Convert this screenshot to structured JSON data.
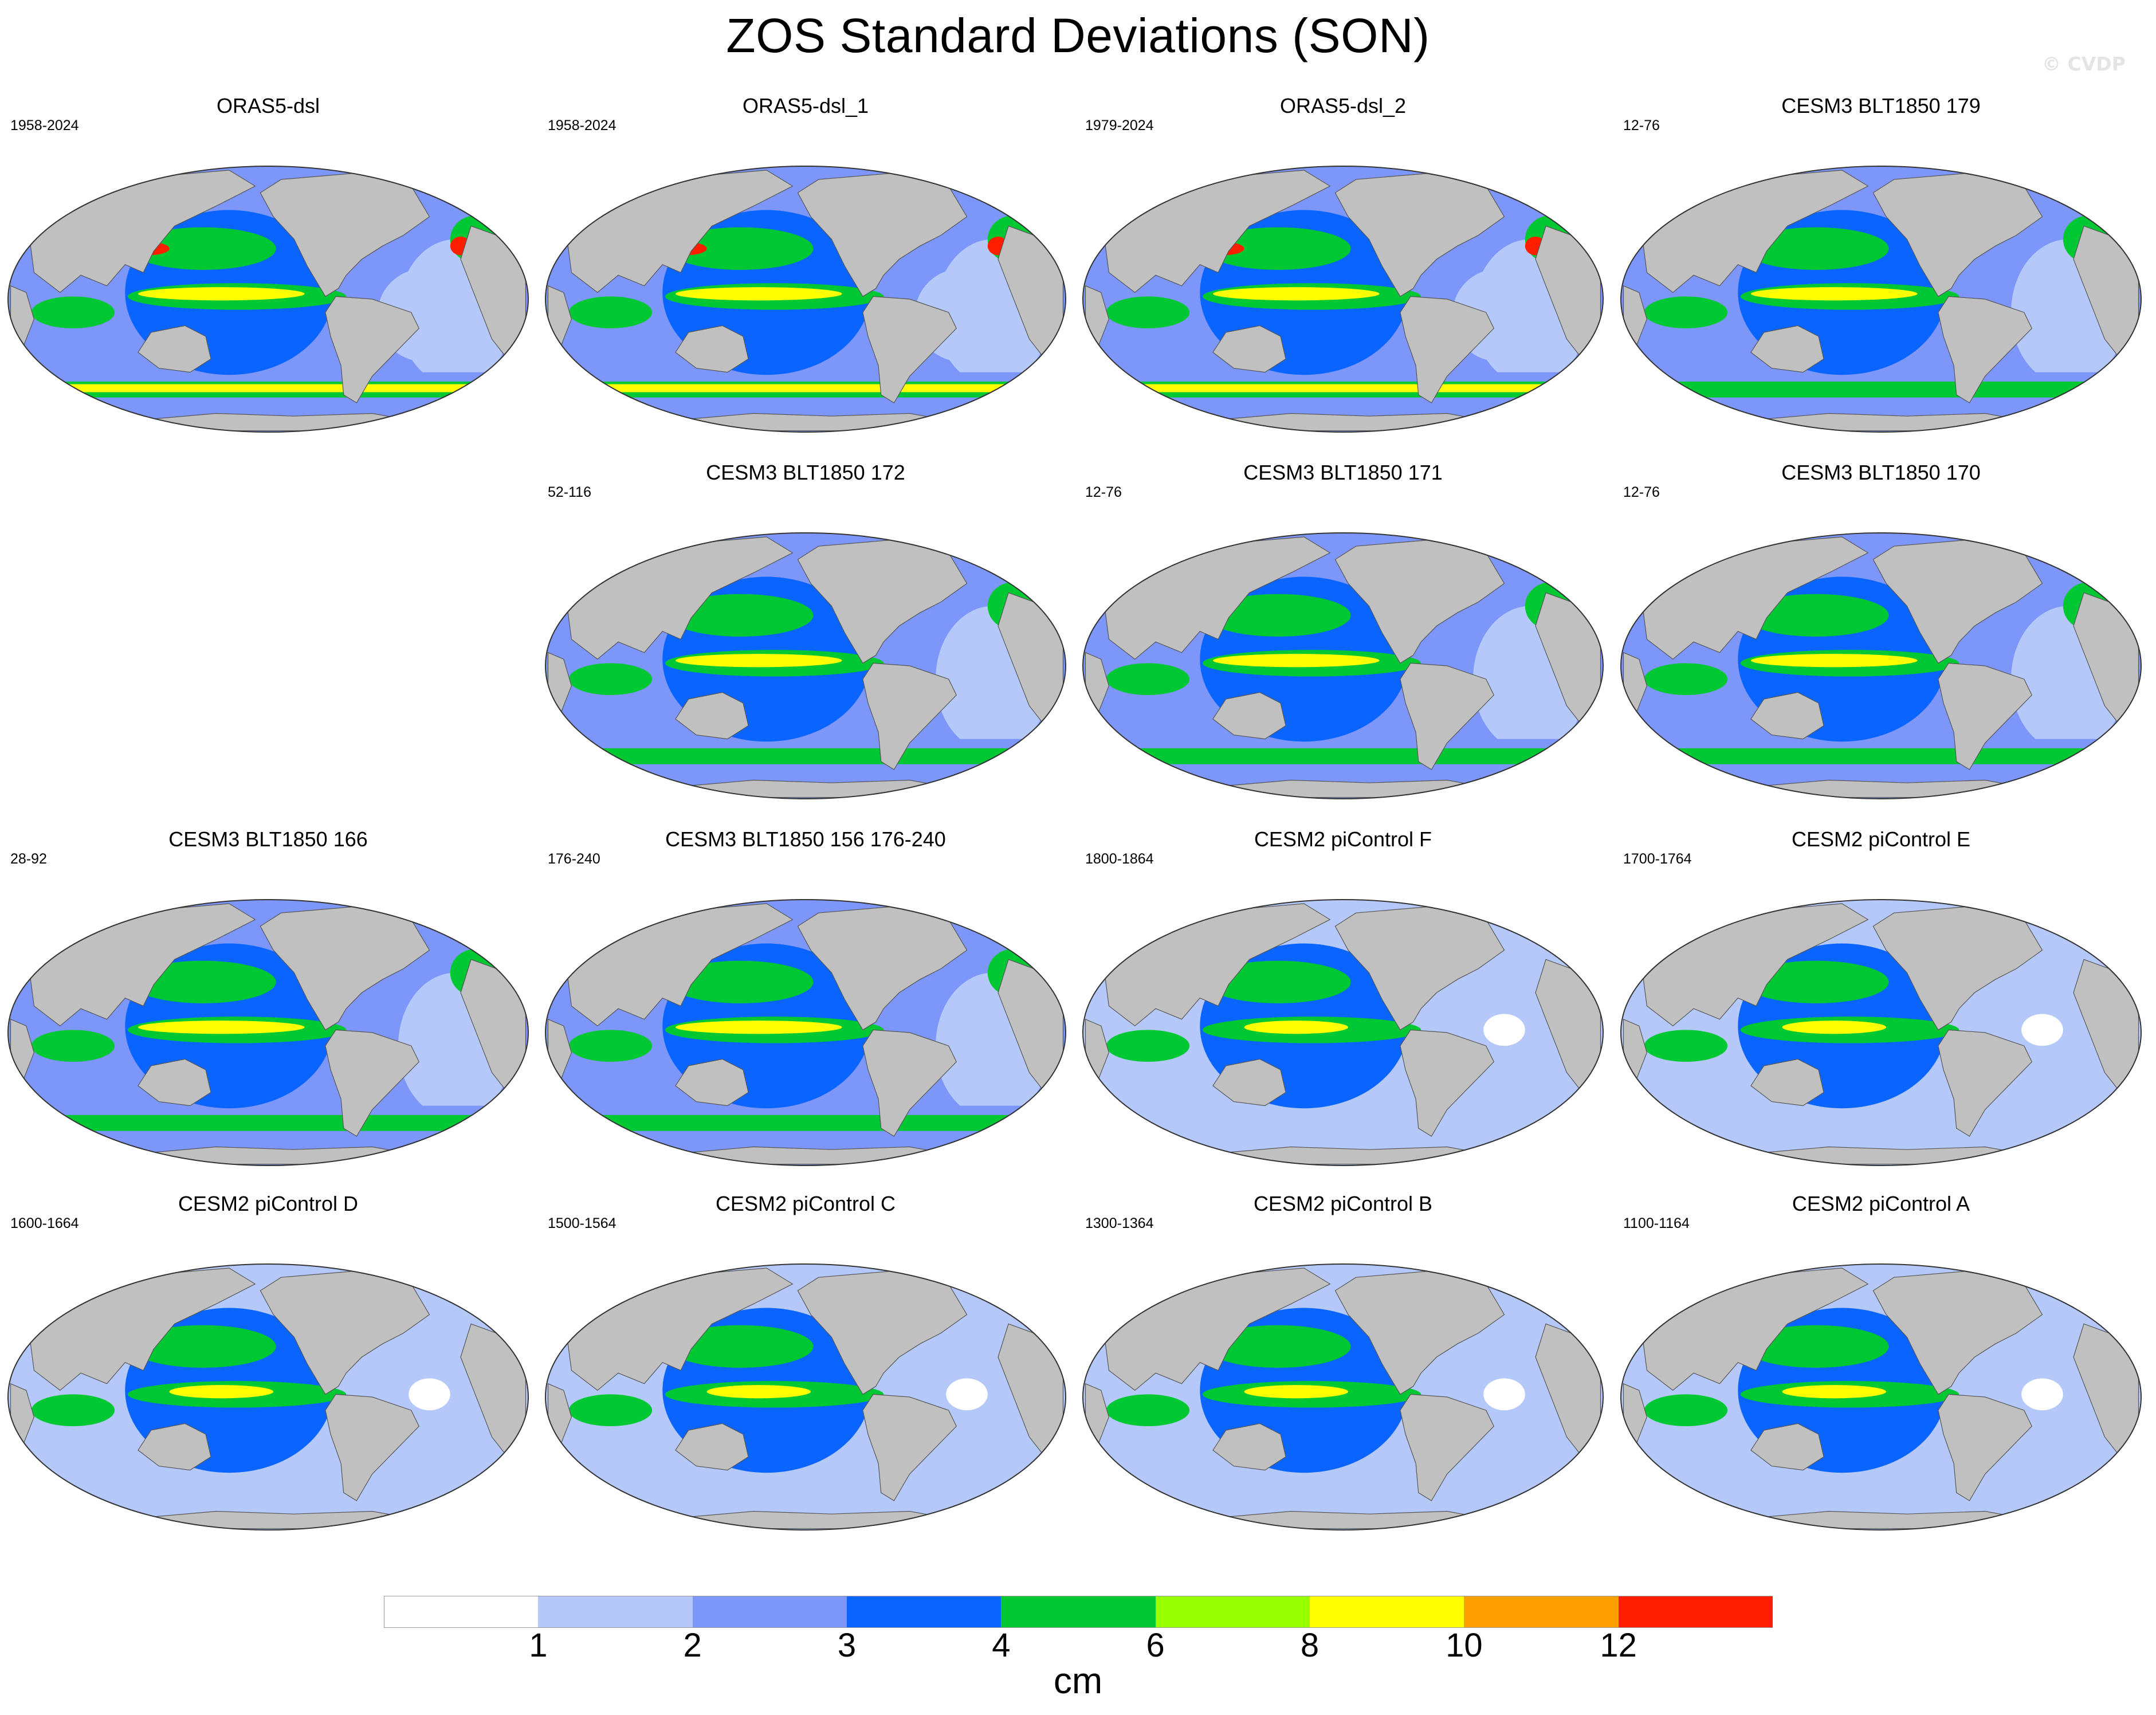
{
  "title": "ZOS Standard Deviations (SON)",
  "watermark": "© CVDP",
  "colorbar": {
    "units": "cm",
    "tick_labels": [
      "1",
      "2",
      "3",
      "4",
      "6",
      "8",
      "10",
      "12"
    ],
    "colors": [
      "#ffffff",
      "#b4c8fa",
      "#7d96fa",
      "#0a64ff",
      "#00c832",
      "#96ff00",
      "#ffff00",
      "#ffa000",
      "#ff1e00"
    ],
    "bins": [
      "<1",
      "1-2",
      "2-3",
      "3-4",
      "4-6",
      "6-8",
      "8-10",
      "10-12",
      ">12"
    ]
  },
  "map_colors": {
    "land": "#c0c0c0",
    "ocean_low": "#b4c8fa",
    "ocean_mid": "#7d96fa",
    "ocean_high": "#0a64ff",
    "green": "#00c832",
    "lime": "#96ff00",
    "yellow": "#ffff00",
    "orange": "#ffa000",
    "red": "#ff1e00",
    "empty": "#ffffff"
  },
  "panels": [
    {
      "id": "p1",
      "title": "ORAS5-dsl",
      "years": "1958-2024",
      "row": 0,
      "col": 0,
      "intensity": 3
    },
    {
      "id": "p2",
      "title": "ORAS5-dsl_1",
      "years": "1958-2024",
      "row": 0,
      "col": 1,
      "intensity": 3
    },
    {
      "id": "p3",
      "title": "ORAS5-dsl_2",
      "years": "1979-2024",
      "row": 0,
      "col": 2,
      "intensity": 3
    },
    {
      "id": "p4",
      "title": "CESM3 BLT1850 179",
      "years": "12-76",
      "row": 0,
      "col": 3,
      "intensity": 2
    },
    {
      "id": "p5",
      "title": "CESM3 BLT1850 172",
      "years": "52-116",
      "row": 1,
      "col": 1,
      "intensity": 2
    },
    {
      "id": "p6",
      "title": "CESM3 BLT1850 171",
      "years": "12-76",
      "row": 1,
      "col": 2,
      "intensity": 2
    },
    {
      "id": "p7",
      "title": "CESM3 BLT1850 170",
      "years": "12-76",
      "row": 1,
      "col": 3,
      "intensity": 2
    },
    {
      "id": "p8",
      "title": "CESM3 BLT1850 166",
      "years": "28-92",
      "row": 2,
      "col": 0,
      "intensity": 2
    },
    {
      "id": "p9",
      "title": "CESM3 BLT1850 156 176-240",
      "years": "176-240",
      "row": 2,
      "col": 1,
      "intensity": 2
    },
    {
      "id": "p10",
      "title": "CESM2 piControl F",
      "years": "1800-1864",
      "row": 2,
      "col": 2,
      "intensity": 1
    },
    {
      "id": "p11",
      "title": "CESM2 piControl E",
      "years": "1700-1764",
      "row": 2,
      "col": 3,
      "intensity": 1
    },
    {
      "id": "p12",
      "title": "CESM2 piControl D",
      "years": "1600-1664",
      "row": 3,
      "col": 0,
      "intensity": 1
    },
    {
      "id": "p13",
      "title": "CESM2 piControl C",
      "years": "1500-1564",
      "row": 3,
      "col": 1,
      "intensity": 1
    },
    {
      "id": "p14",
      "title": "CESM2 piControl B",
      "years": "1300-1364",
      "row": 3,
      "col": 2,
      "intensity": 1
    },
    {
      "id": "p15",
      "title": "CESM2 piControl A",
      "years": "1100-1164",
      "row": 3,
      "col": 3,
      "intensity": 1
    }
  ]
}
